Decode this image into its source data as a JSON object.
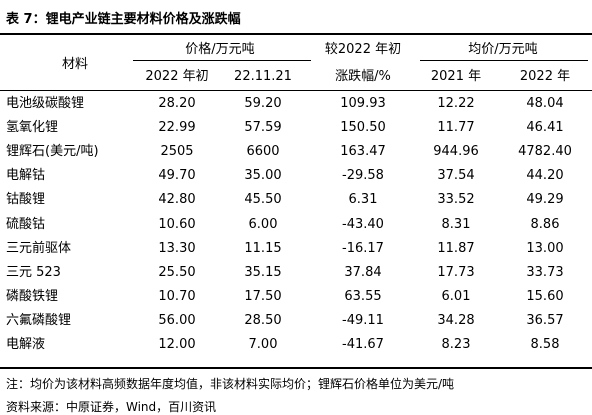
{
  "header": {
    "title": "表 7：锂电产业链主要材料价格及涨跌幅"
  },
  "table": {
    "columns": {
      "material": "材料",
      "price_group": "价格/万元吨",
      "price_start": "2022 年初",
      "price_now": "22.11.21",
      "change_line1": "较2022 年初",
      "change_line2": "涨跌幅/%",
      "avg_group": "均价/万元吨",
      "avg_2021": "2021 年",
      "avg_2022": "2022 年"
    },
    "rows": [
      [
        "电池级碳酸锂",
        "28.20",
        "59.20",
        "109.93",
        "12.22",
        "48.04"
      ],
      [
        "氢氧化锂",
        "22.99",
        "57.59",
        "150.50",
        "11.77",
        "46.41"
      ],
      [
        "锂辉石(美元/吨)",
        "2505",
        "6600",
        "163.47",
        "944.96",
        "4782.40"
      ],
      [
        "电解钴",
        "49.70",
        "35.00",
        "-29.58",
        "37.54",
        "44.20"
      ],
      [
        "钴酸锂",
        "42.80",
        "45.50",
        "6.31",
        "33.52",
        "49.29"
      ],
      [
        "硫酸钴",
        "10.60",
        "6.00",
        "-43.40",
        "8.31",
        "8.86"
      ],
      [
        "三元前驱体",
        "13.30",
        "11.15",
        "-16.17",
        "11.87",
        "13.00"
      ],
      [
        "三元 523",
        "25.50",
        "35.15",
        "37.84",
        "17.73",
        "33.73"
      ],
      [
        "磷酸铁锂",
        "10.70",
        "17.50",
        "63.55",
        "6.01",
        "15.60"
      ],
      [
        "六氟磷酸锂",
        "56.00",
        "28.50",
        "-49.11",
        "34.28",
        "36.57"
      ],
      [
        "电解液",
        "12.00",
        "7.00",
        "-41.67",
        "8.23",
        "8.58"
      ]
    ]
  },
  "footer": {
    "note": "注：均价为该材料高频数据年度均值，非该材料实际均价；锂辉石价格单位为美元/吨",
    "source": "资料来源：中原证券，Wind，百川资讯"
  }
}
